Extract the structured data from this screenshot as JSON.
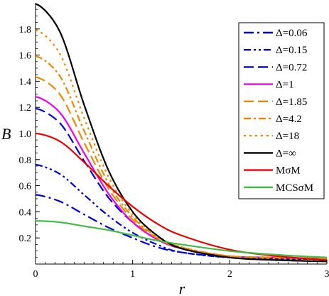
{
  "chart_data": {
    "type": "line",
    "xlabel": "r",
    "ylabel": "B",
    "xlim": [
      0,
      3
    ],
    "ylim": [
      0,
      2
    ],
    "x_ticks": [
      "0",
      "1",
      "2",
      "3"
    ],
    "y_ticks": [
      "0.2",
      "0.4",
      "0.6",
      "0.8",
      "1.0",
      "1.2",
      "1.4",
      "1.6",
      "1.8"
    ],
    "grid": false,
    "legend_placement": "top-right",
    "series": [
      {
        "name": "Δ=0.06",
        "color": "#0000dd",
        "dash": "longdash-dot",
        "x": [
          0,
          0.25,
          0.5,
          0.75,
          1,
          1.25,
          1.5,
          2,
          2.5,
          3
        ],
        "values": [
          0.53,
          0.48,
          0.38,
          0.28,
          0.2,
          0.13,
          0.09,
          0.05,
          0.04,
          0.04
        ]
      },
      {
        "name": "Δ=0.15",
        "color": "#0000dd",
        "dash": "dash-dot-dot",
        "x": [
          0,
          0.25,
          0.5,
          0.75,
          1,
          1.25,
          1.5,
          2,
          2.5,
          3
        ],
        "values": [
          0.76,
          0.69,
          0.53,
          0.37,
          0.24,
          0.15,
          0.09,
          0.05,
          0.04,
          0.04
        ]
      },
      {
        "name": "Δ=0.72",
        "color": "#0000dd",
        "dash": "long-dash",
        "x": [
          0,
          0.25,
          0.5,
          0.75,
          1,
          1.25,
          1.5,
          2,
          2.5,
          3
        ],
        "values": [
          1.19,
          1.08,
          0.79,
          0.51,
          0.32,
          0.19,
          0.12,
          0.06,
          0.04,
          0.04
        ]
      },
      {
        "name": "Δ=1",
        "color": "#ee00ee",
        "dash": "solid",
        "x": [
          0,
          0.25,
          0.5,
          0.75,
          1,
          1.25,
          1.5,
          2,
          2.5,
          3
        ],
        "values": [
          1.28,
          1.16,
          0.85,
          0.54,
          0.32,
          0.19,
          0.12,
          0.06,
          0.05,
          0.04
        ]
      },
      {
        "name": "Δ=1.85",
        "color": "#ee8800",
        "dash": "long-dash",
        "x": [
          0,
          0.25,
          0.5,
          0.75,
          1,
          1.25,
          1.5,
          2,
          2.5,
          3
        ],
        "values": [
          1.43,
          1.3,
          0.93,
          0.58,
          0.34,
          0.2,
          0.12,
          0.06,
          0.05,
          0.04
        ]
      },
      {
        "name": "Δ=4.2",
        "color": "#ee8800",
        "dash": "dash-dot",
        "x": [
          0,
          0.25,
          0.5,
          0.75,
          1,
          1.25,
          1.5,
          2,
          2.5,
          3
        ],
        "values": [
          1.59,
          1.44,
          1.02,
          0.62,
          0.36,
          0.21,
          0.13,
          0.06,
          0.05,
          0.04
        ]
      },
      {
        "name": "Δ=18",
        "color": "#ee8800",
        "dash": "dotted",
        "x": [
          0,
          0.25,
          0.5,
          0.75,
          1,
          1.25,
          1.5,
          2,
          2.5,
          3
        ],
        "values": [
          1.79,
          1.61,
          1.12,
          0.67,
          0.38,
          0.22,
          0.13,
          0.06,
          0.04,
          0.03
        ]
      },
      {
        "name": "Δ=∞",
        "color": "#000000",
        "dash": "solid",
        "x": [
          0,
          0.25,
          0.5,
          0.75,
          1,
          1.25,
          1.5,
          2,
          2.5,
          3
        ],
        "values": [
          1.99,
          1.78,
          1.22,
          0.72,
          0.4,
          0.22,
          0.12,
          0.05,
          0.03,
          0.02
        ]
      },
      {
        "name": "MσM",
        "color": "#ee0000",
        "dash": "solid",
        "x": [
          0,
          0.25,
          0.5,
          0.75,
          1,
          1.25,
          1.5,
          2,
          2.5,
          3
        ],
        "values": [
          1.0,
          0.94,
          0.78,
          0.6,
          0.44,
          0.31,
          0.22,
          0.11,
          0.06,
          0.03
        ]
      },
      {
        "name": "MCSσM",
        "color": "#44bb44",
        "dash": "solid",
        "x": [
          0,
          0.25,
          0.5,
          0.75,
          1,
          1.25,
          1.5,
          2,
          2.5,
          3
        ],
        "values": [
          0.33,
          0.32,
          0.29,
          0.26,
          0.22,
          0.18,
          0.15,
          0.1,
          0.07,
          0.05
        ]
      }
    ]
  }
}
